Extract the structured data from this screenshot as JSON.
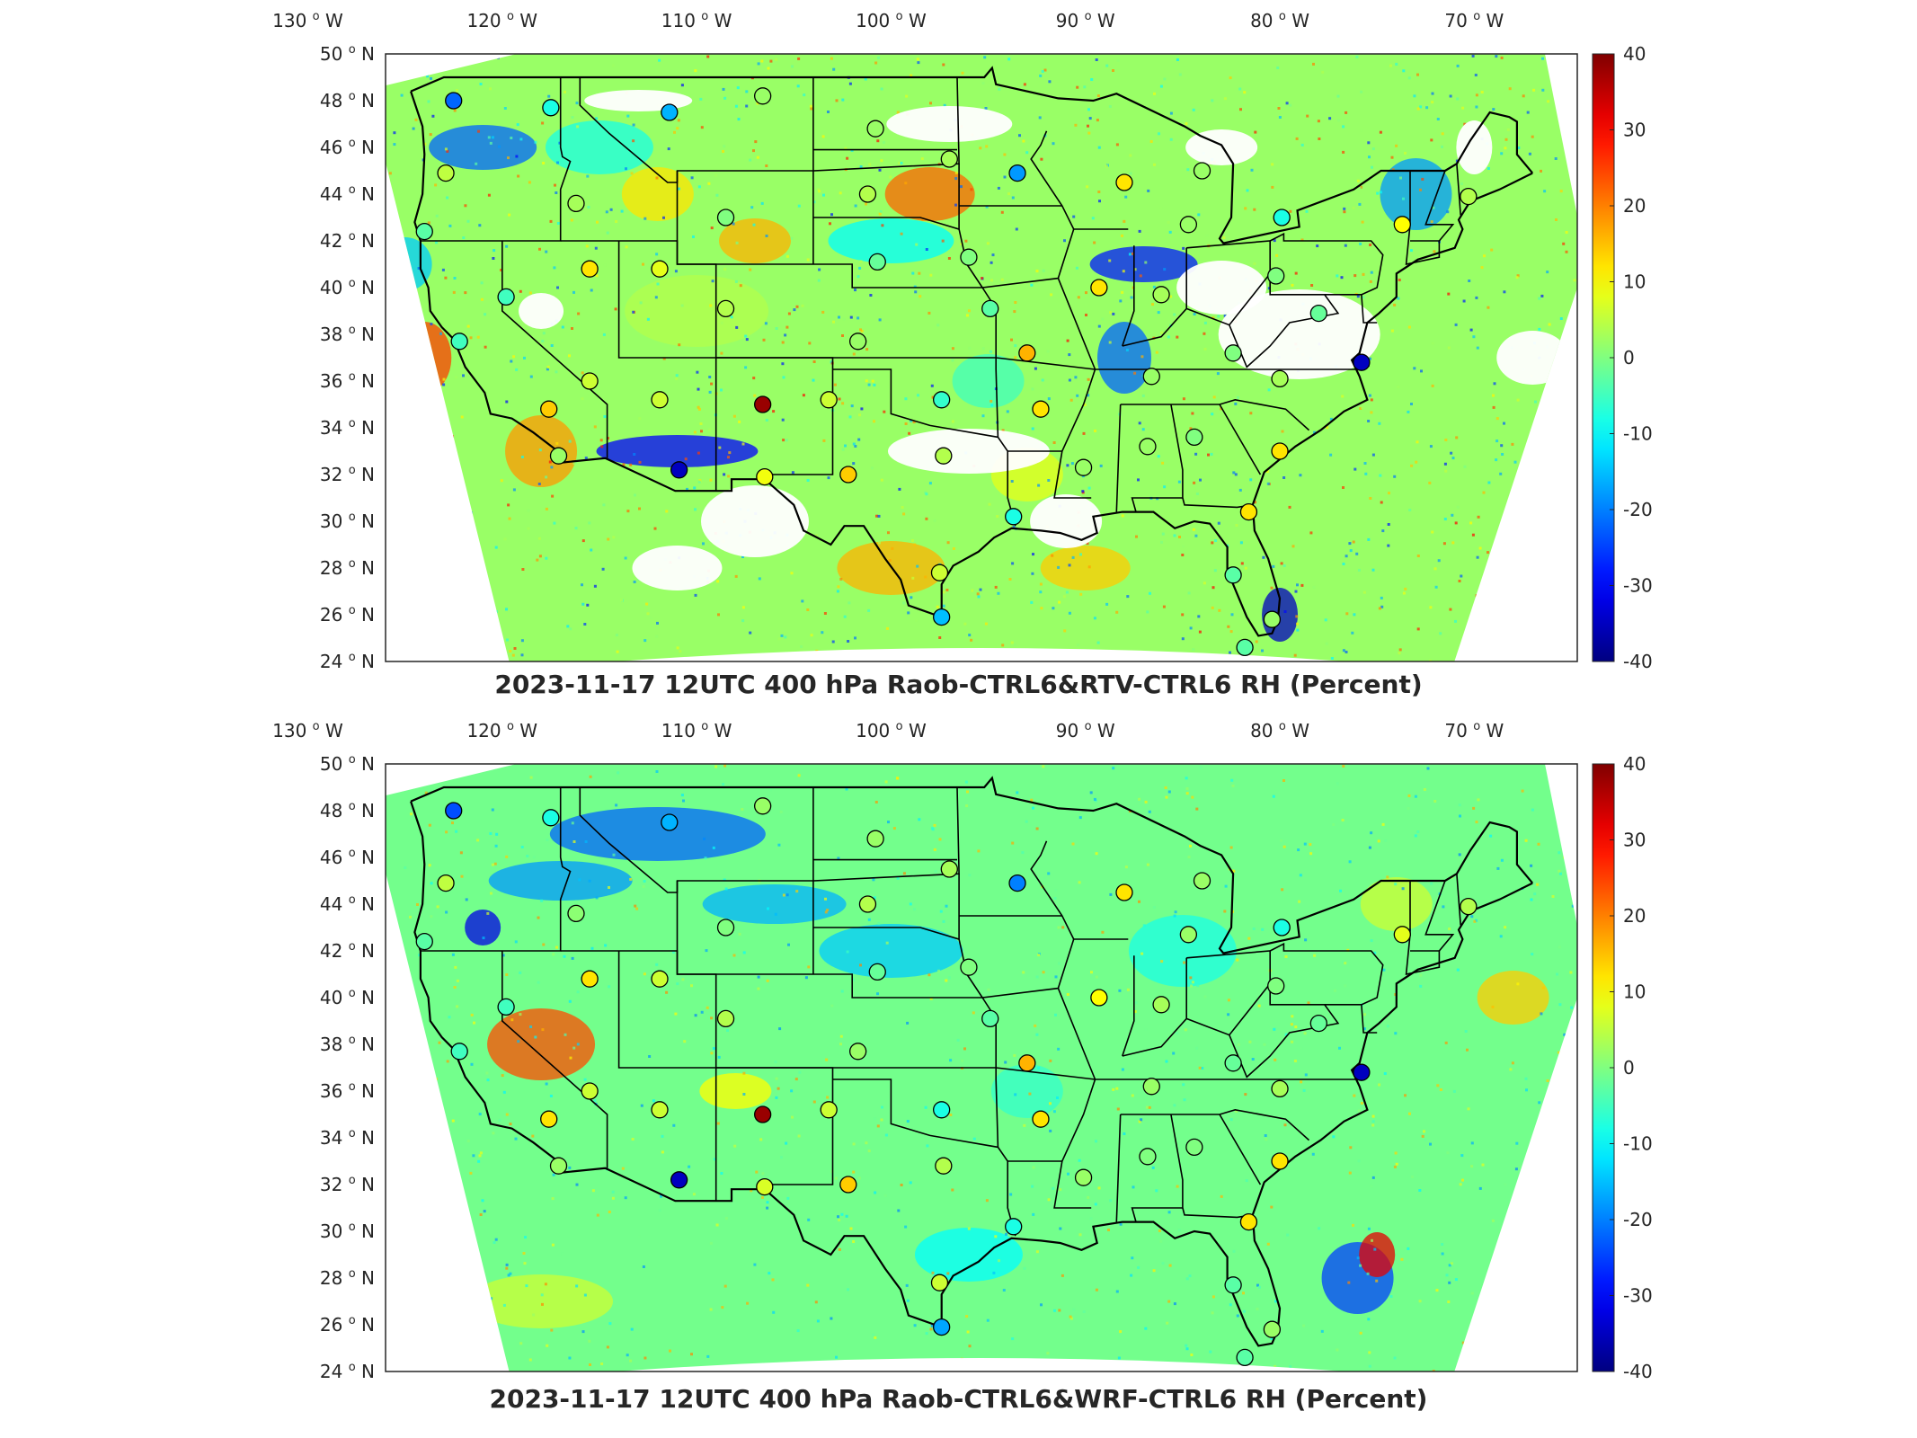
{
  "panels": [
    {
      "id": "top",
      "title": "2023-11-17 12UTC 400 hPa Raob-CTRL6&RTV-CTRL6 RH (Percent)",
      "field": "RTV-CTRL6"
    },
    {
      "id": "bottom",
      "title": "2023-11-17 12UTC 400 hPa Raob-CTRL6&WRF-CTRL6 RH (Percent)",
      "field": "WRF-CTRL6"
    }
  ],
  "lon_ticks": [
    {
      "value": -130,
      "label": "130",
      "hemi": "W"
    },
    {
      "value": -120,
      "label": "120",
      "hemi": "W"
    },
    {
      "value": -110,
      "label": "110",
      "hemi": "W"
    },
    {
      "value": -100,
      "label": "100",
      "hemi": "W"
    },
    {
      "value": -90,
      "label": "90",
      "hemi": "W"
    },
    {
      "value": -80,
      "label": "80",
      "hemi": "W"
    },
    {
      "value": -70,
      "label": "70",
      "hemi": "W"
    }
  ],
  "lat_ticks": [
    {
      "value": 50,
      "label": "50",
      "hemi": "N"
    },
    {
      "value": 48,
      "label": "48",
      "hemi": "N"
    },
    {
      "value": 46,
      "label": "46",
      "hemi": "N"
    },
    {
      "value": 44,
      "label": "44",
      "hemi": "N"
    },
    {
      "value": 42,
      "label": "42",
      "hemi": "N"
    },
    {
      "value": 40,
      "label": "40",
      "hemi": "N"
    },
    {
      "value": 38,
      "label": "38",
      "hemi": "N"
    },
    {
      "value": 36,
      "label": "36",
      "hemi": "N"
    },
    {
      "value": 34,
      "label": "34",
      "hemi": "N"
    },
    {
      "value": 32,
      "label": "32",
      "hemi": "N"
    },
    {
      "value": 30,
      "label": "30",
      "hemi": "N"
    },
    {
      "value": 28,
      "label": "28",
      "hemi": "N"
    },
    {
      "value": 26,
      "label": "26",
      "hemi": "N"
    },
    {
      "value": 24,
      "label": "24",
      "hemi": "N"
    }
  ],
  "colorbar": {
    "min": -40,
    "max": 40,
    "ticks": [
      "40",
      "30",
      "20",
      "10",
      "0",
      "-10",
      "-20",
      "-30",
      "-40"
    ],
    "colormap": "jet"
  },
  "stations": [
    {
      "lon": -122.5,
      "lat": 48.0,
      "val": -22
    },
    {
      "lon": -117.5,
      "lat": 47.7,
      "val": -8
    },
    {
      "lon": -111.4,
      "lat": 47.5,
      "val": -16
    },
    {
      "lon": -106.6,
      "lat": 48.2,
      "val": 2
    },
    {
      "lon": -122.9,
      "lat": 44.9,
      "val": 5
    },
    {
      "lon": -116.2,
      "lat": 43.6,
      "val": 3
    },
    {
      "lon": -108.5,
      "lat": 43.0,
      "val": 0
    },
    {
      "lon": -100.8,
      "lat": 46.8,
      "val": 2
    },
    {
      "lon": -97.0,
      "lat": 45.5,
      "val": 3
    },
    {
      "lon": -101.2,
      "lat": 44.0,
      "val": 4
    },
    {
      "lon": -93.5,
      "lat": 44.9,
      "val": -18
    },
    {
      "lon": -88.0,
      "lat": 44.5,
      "val": 12
    },
    {
      "lon": -84.0,
      "lat": 45.0,
      "val": 2
    },
    {
      "lon": -84.7,
      "lat": 42.7,
      "val": 2
    },
    {
      "lon": -79.9,
      "lat": 43.0,
      "val": -8
    },
    {
      "lon": -73.7,
      "lat": 42.7,
      "val": 10
    },
    {
      "lon": -70.3,
      "lat": 43.9,
      "val": 4
    },
    {
      "lon": -124.0,
      "lat": 42.4,
      "val": -3
    },
    {
      "lon": -119.8,
      "lat": 39.6,
      "val": -5
    },
    {
      "lon": -115.5,
      "lat": 40.8,
      "val": 12
    },
    {
      "lon": -111.9,
      "lat": 40.8,
      "val": 8
    },
    {
      "lon": -108.5,
      "lat": 39.1,
      "val": 4
    },
    {
      "lon": -100.7,
      "lat": 41.1,
      "val": -2
    },
    {
      "lon": -96.0,
      "lat": 41.3,
      "val": 0
    },
    {
      "lon": -94.9,
      "lat": 39.1,
      "val": -3
    },
    {
      "lon": -89.3,
      "lat": 40.0,
      "val": 12
    },
    {
      "lon": -86.1,
      "lat": 39.7,
      "val": 3
    },
    {
      "lon": -80.2,
      "lat": 40.5,
      "val": 0
    },
    {
      "lon": -78.0,
      "lat": 38.9,
      "val": -2
    },
    {
      "lon": -122.2,
      "lat": 37.7,
      "val": -5
    },
    {
      "lon": -117.6,
      "lat": 34.8,
      "val": 14
    },
    {
      "lon": -115.5,
      "lat": 36.0,
      "val": 6
    },
    {
      "lon": -111.9,
      "lat": 35.2,
      "val": 6
    },
    {
      "lon": -106.6,
      "lat": 35.0,
      "val": 38
    },
    {
      "lon": -103.2,
      "lat": 35.2,
      "val": 6
    },
    {
      "lon": -97.4,
      "lat": 35.2,
      "val": -6
    },
    {
      "lon": -101.7,
      "lat": 37.7,
      "val": 2
    },
    {
      "lon": -93.0,
      "lat": 37.2,
      "val": 16
    },
    {
      "lon": -92.3,
      "lat": 34.8,
      "val": 12
    },
    {
      "lon": -86.6,
      "lat": 36.2,
      "val": 2
    },
    {
      "lon": -82.4,
      "lat": 37.2,
      "val": 0
    },
    {
      "lon": -80.0,
      "lat": 36.1,
      "val": 3
    },
    {
      "lon": -75.8,
      "lat": 36.8,
      "val": -35
    },
    {
      "lon": -117.1,
      "lat": 32.8,
      "val": 2
    },
    {
      "lon": -110.9,
      "lat": 32.2,
      "val": -35
    },
    {
      "lon": -106.5,
      "lat": 31.9,
      "val": 9
    },
    {
      "lon": -102.2,
      "lat": 32.0,
      "val": 14
    },
    {
      "lon": -97.3,
      "lat": 32.8,
      "val": 4
    },
    {
      "lon": -93.7,
      "lat": 30.2,
      "val": -8
    },
    {
      "lon": -90.1,
      "lat": 32.3,
      "val": 2
    },
    {
      "lon": -86.8,
      "lat": 33.2,
      "val": 2
    },
    {
      "lon": -84.4,
      "lat": 33.6,
      "val": 0
    },
    {
      "lon": -80.0,
      "lat": 33.0,
      "val": 12
    },
    {
      "lon": -81.6,
      "lat": 30.4,
      "val": 12
    },
    {
      "lon": -97.5,
      "lat": 27.8,
      "val": 6
    },
    {
      "lon": -97.4,
      "lat": 25.9,
      "val": -15
    },
    {
      "lon": -82.4,
      "lat": 27.7,
      "val": -3
    },
    {
      "lon": -80.4,
      "lat": 25.8,
      "val": 2
    },
    {
      "lon": -81.8,
      "lat": 24.6,
      "val": -3
    }
  ],
  "borders": [
    [
      [
        -124.7,
        48.4
      ],
      [
        -123.0,
        49.0
      ],
      [
        -95.2,
        49.0
      ],
      [
        -94.8,
        49.4
      ],
      [
        -94.6,
        48.7
      ],
      [
        -91.4,
        48.1
      ],
      [
        -89.6,
        48.0
      ],
      [
        -88.4,
        48.3
      ],
      [
        -84.9,
        46.9
      ],
      [
        -84.1,
        46.5
      ],
      [
        -83.0,
        46.1
      ],
      [
        -82.4,
        45.3
      ],
      [
        -82.5,
        43.0
      ],
      [
        -83.1,
        42.1
      ],
      [
        -82.9,
        41.9
      ],
      [
        -79.0,
        42.6
      ],
      [
        -79.1,
        43.3
      ],
      [
        -76.2,
        44.2
      ],
      [
        -74.8,
        45.0
      ],
      [
        -71.5,
        45.0
      ],
      [
        -70.9,
        45.3
      ],
      [
        -70.2,
        46.3
      ],
      [
        -69.2,
        47.5
      ],
      [
        -68.2,
        47.3
      ],
      [
        -67.8,
        47.1
      ],
      [
        -67.8,
        45.7
      ],
      [
        -67.0,
        44.9
      ]
    ],
    [
      [
        -67.0,
        44.9
      ],
      [
        -68.7,
        44.2
      ],
      [
        -70.2,
        43.7
      ],
      [
        -70.8,
        42.9
      ],
      [
        -70.6,
        42.5
      ],
      [
        -71.0,
        41.7
      ],
      [
        -72.9,
        41.2
      ],
      [
        -74.0,
        40.6
      ],
      [
        -74.0,
        39.6
      ],
      [
        -74.9,
        38.9
      ],
      [
        -75.5,
        38.5
      ],
      [
        -75.9,
        37.2
      ],
      [
        -76.3,
        36.9
      ],
      [
        -75.9,
        36.2
      ],
      [
        -75.5,
        35.2
      ],
      [
        -76.7,
        34.7
      ],
      [
        -77.9,
        33.9
      ],
      [
        -79.2,
        33.2
      ],
      [
        -80.8,
        32.1
      ],
      [
        -81.4,
        30.7
      ],
      [
        -81.3,
        29.6
      ],
      [
        -80.6,
        28.4
      ],
      [
        -80.0,
        26.7
      ],
      [
        -80.1,
        25.8
      ],
      [
        -80.4,
        25.2
      ],
      [
        -81.1,
        25.1
      ],
      [
        -81.7,
        25.9
      ],
      [
        -82.1,
        26.7
      ],
      [
        -82.7,
        27.9
      ],
      [
        -82.7,
        28.9
      ],
      [
        -83.6,
        29.9
      ],
      [
        -84.4,
        30.0
      ],
      [
        -85.4,
        29.7
      ],
      [
        -86.5,
        30.4
      ],
      [
        -88.1,
        30.4
      ],
      [
        -89.6,
        30.2
      ],
      [
        -89.4,
        29.5
      ],
      [
        -90.2,
        29.2
      ],
      [
        -91.3,
        29.5
      ],
      [
        -92.3,
        29.6
      ],
      [
        -93.8,
        29.7
      ],
      [
        -94.7,
        29.3
      ],
      [
        -95.5,
        28.7
      ],
      [
        -96.8,
        28.1
      ],
      [
        -97.4,
        27.3
      ],
      [
        -97.4,
        26.0
      ],
      [
        -97.1,
        25.9
      ]
    ],
    [
      [
        -117.1,
        32.5
      ],
      [
        -117.3,
        33.1
      ],
      [
        -118.4,
        33.8
      ],
      [
        -119.5,
        34.4
      ],
      [
        -120.6,
        34.6
      ],
      [
        -120.9,
        35.5
      ],
      [
        -121.9,
        36.6
      ],
      [
        -122.5,
        37.8
      ],
      [
        -123.1,
        38.3
      ],
      [
        -123.7,
        39.0
      ],
      [
        -123.8,
        40.0
      ],
      [
        -124.2,
        40.8
      ],
      [
        -124.2,
        42.0
      ],
      [
        -124.5,
        42.8
      ],
      [
        -124.1,
        44.0
      ],
      [
        -124.0,
        45.7
      ],
      [
        -124.1,
        46.9
      ],
      [
        -124.7,
        48.4
      ]
    ],
    [
      [
        -117.1,
        32.5
      ],
      [
        -114.7,
        32.7
      ],
      [
        -111.1,
        31.3
      ],
      [
        -108.2,
        31.3
      ],
      [
        -108.2,
        31.8
      ],
      [
        -106.5,
        31.8
      ],
      [
        -105.0,
        30.7
      ],
      [
        -104.5,
        29.6
      ],
      [
        -103.1,
        29.0
      ],
      [
        -102.4,
        29.8
      ],
      [
        -101.4,
        29.8
      ],
      [
        -100.3,
        28.4
      ],
      [
        -99.5,
        27.5
      ],
      [
        -99.1,
        26.4
      ],
      [
        -97.4,
        25.9
      ]
    ]
  ],
  "states": [
    [
      [
        -117.0,
        49.0
      ],
      [
        -117.0,
        46.0
      ],
      [
        -116.9,
        45.6
      ],
      [
        -116.5,
        45.4
      ],
      [
        -117.0,
        44.2
      ],
      [
        -117.0,
        42.0
      ],
      [
        -120.0,
        42.0
      ],
      [
        -124.2,
        42.0
      ]
    ],
    [
      [
        -120.0,
        42.0
      ],
      [
        -120.0,
        39.0
      ],
      [
        -114.6,
        35.0
      ],
      [
        -114.6,
        32.7
      ]
    ],
    [
      [
        -117.0,
        42.0
      ],
      [
        -111.0,
        42.0
      ],
      [
        -111.0,
        41.0
      ],
      [
        -109.0,
        41.0
      ],
      [
        -102.0,
        41.0
      ],
      [
        -102.0,
        40.0
      ],
      [
        -95.3,
        40.0
      ]
    ],
    [
      [
        -114.0,
        42.0
      ],
      [
        -114.0,
        37.0
      ],
      [
        -109.0,
        37.0
      ],
      [
        -103.0,
        37.0
      ],
      [
        -102.0,
        37.0
      ],
      [
        -94.6,
        37.0
      ],
      [
        -89.5,
        36.5
      ],
      [
        -75.8,
        36.5
      ]
    ],
    [
      [
        -111.1,
        31.3
      ],
      [
        -109.0,
        31.3
      ],
      [
        -109.0,
        37.0
      ],
      [
        -109.0,
        41.0
      ],
      [
        -111.0,
        41.0
      ],
      [
        -111.0,
        45.0
      ],
      [
        -104.0,
        45.0
      ],
      [
        -104.0,
        41.0
      ]
    ],
    [
      [
        -116.0,
        49.0
      ],
      [
        -116.0,
        47.8
      ],
      [
        -114.5,
        46.6
      ],
      [
        -111.5,
        44.5
      ],
      [
        -111.0,
        44.5
      ],
      [
        -111.0,
        45.0
      ]
    ],
    [
      [
        -104.0,
        49.0
      ],
      [
        -104.0,
        45.0
      ],
      [
        -96.5,
        45.3
      ],
      [
        -96.6,
        49.0
      ]
    ],
    [
      [
        -104.0,
        45.9
      ],
      [
        -96.6,
        45.9
      ]
    ],
    [
      [
        -104.0,
        43.0
      ],
      [
        -98.5,
        43.0
      ],
      [
        -96.5,
        42.5
      ],
      [
        -96.5,
        45.3
      ]
    ],
    [
      [
        -109.0,
        37.0
      ],
      [
        -103.0,
        37.0
      ],
      [
        -103.0,
        32.0
      ],
      [
        -106.6,
        32.0
      ]
    ],
    [
      [
        -103.0,
        36.5
      ],
      [
        -100.0,
        36.5
      ],
      [
        -100.0,
        34.6
      ],
      [
        -98.0,
        34.1
      ],
      [
        -94.5,
        33.6
      ],
      [
        -94.0,
        33.0
      ],
      [
        -94.0,
        31.0
      ],
      [
        -93.6,
        29.8
      ]
    ],
    [
      [
        -94.6,
        37.0
      ],
      [
        -94.6,
        36.5
      ],
      [
        -94.5,
        33.6
      ]
    ],
    [
      [
        -95.3,
        40.0
      ],
      [
        -94.6,
        39.1
      ],
      [
        -94.6,
        37.0
      ]
    ],
    [
      [
        -96.5,
        42.5
      ],
      [
        -96.1,
        41.0
      ],
      [
        -95.3,
        40.0
      ],
      [
        -91.4,
        40.4
      ],
      [
        -90.6,
        42.5
      ],
      [
        -87.8,
        42.5
      ]
    ],
    [
      [
        -96.5,
        43.5
      ],
      [
        -91.2,
        43.5
      ]
    ],
    [
      [
        -91.4,
        40.4
      ],
      [
        -89.5,
        36.5
      ],
      [
        -90.1,
        35.0
      ],
      [
        -91.2,
        33.0
      ],
      [
        -91.6,
        31.0
      ],
      [
        -89.7,
        31.0
      ]
    ],
    [
      [
        -94.0,
        33.0
      ],
      [
        -91.2,
        33.0
      ]
    ],
    [
      [
        -92.0,
        46.7
      ],
      [
        -92.3,
        46.1
      ],
      [
        -92.8,
        45.5
      ],
      [
        -91.2,
        43.5
      ],
      [
        -90.6,
        42.5
      ]
    ],
    [
      [
        -88.1,
        37.5
      ],
      [
        -87.5,
        39.0
      ],
      [
        -87.5,
        41.8
      ]
    ],
    [
      [
        -84.8,
        41.7
      ],
      [
        -84.8,
        39.1
      ],
      [
        -86.1,
        37.9
      ],
      [
        -88.1,
        37.5
      ]
    ],
    [
      [
        -84.8,
        41.7
      ],
      [
        -80.5,
        42.0
      ],
      [
        -80.5,
        40.6
      ],
      [
        -82.6,
        38.4
      ],
      [
        -84.8,
        39.1
      ]
    ],
    [
      [
        -80.5,
        42.0
      ],
      [
        -79.8,
        42.3
      ],
      [
        -79.8,
        42.0
      ],
      [
        -75.3,
        42.0
      ],
      [
        -74.7,
        41.4
      ],
      [
        -75.0,
        40.0
      ],
      [
        -75.8,
        39.7
      ],
      [
        -80.5,
        39.7
      ],
      [
        -80.5,
        40.6
      ]
    ],
    [
      [
        -88.2,
        35.0
      ],
      [
        -85.6,
        35.0
      ],
      [
        -84.3,
        35.0
      ],
      [
        -83.1,
        35.0
      ],
      [
        -82.3,
        35.2
      ],
      [
        -79.7,
        34.8
      ],
      [
        -78.5,
        33.9
      ]
    ],
    [
      [
        -88.2,
        35.0
      ],
      [
        -88.4,
        30.4
      ]
    ],
    [
      [
        -85.6,
        35.0
      ],
      [
        -85.0,
        32.2
      ],
      [
        -85.0,
        31.0
      ],
      [
        -87.6,
        31.0
      ],
      [
        -87.4,
        30.4
      ]
    ],
    [
      [
        -85.0,
        31.0
      ],
      [
        -84.9,
        30.7
      ],
      [
        -82.2,
        30.6
      ],
      [
        -81.4,
        30.7
      ]
    ],
    [
      [
        -83.1,
        35.0
      ],
      [
        -81.0,
        32.0
      ]
    ],
    [
      [
        -73.3,
        45.0
      ],
      [
        -73.3,
        42.7
      ],
      [
        -73.5,
        41.0
      ],
      [
        -71.8,
        41.3
      ],
      [
        -71.8,
        42.0
      ],
      [
        -73.3,
        42.0
      ]
    ],
    [
      [
        -71.8,
        42.0
      ],
      [
        -71.1,
        42.7
      ],
      [
        -72.5,
        42.7
      ],
      [
        -71.5,
        45.0
      ]
    ],
    [
      [
        -70.9,
        45.3
      ],
      [
        -70.7,
        43.1
      ]
    ],
    [
      [
        -77.7,
        39.7
      ],
      [
        -77.0,
        38.9
      ],
      [
        -79.5,
        38.5
      ],
      [
        -80.5,
        37.5
      ],
      [
        -81.7,
        36.6
      ],
      [
        -82.6,
        38.4
      ]
    ],
    [
      [
        -75.8,
        39.7
      ],
      [
        -75.7,
        38.5
      ],
      [
        -75.0,
        38.5
      ]
    ]
  ]
}
